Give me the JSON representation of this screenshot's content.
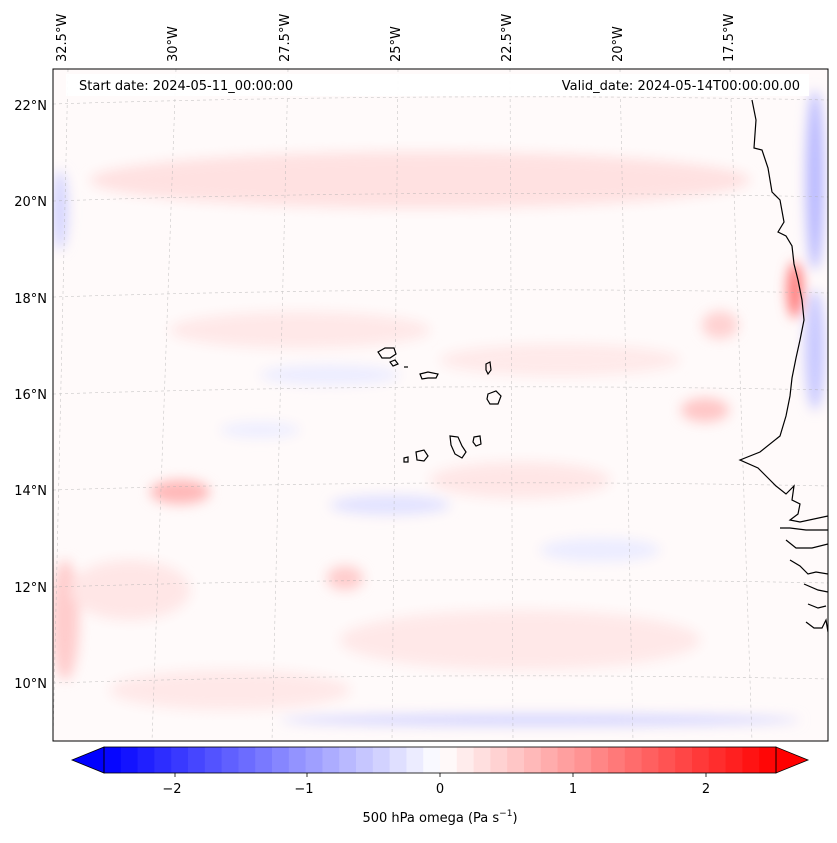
{
  "map": {
    "start_date": "Start date: 2024-05-11_00:00:00",
    "valid_date": "Valid_date: 2024-05-14T00:00:00.00",
    "lon_labels": [
      "32.5°W",
      "30°W",
      "27.5°W",
      "25°W",
      "22.5°W",
      "20°W",
      "17.5°W"
    ],
    "lat_labels": [
      "22°N",
      "20°N",
      "18°N",
      "16°N",
      "14°N",
      "12°N",
      "10°N"
    ],
    "features": {
      "islands": "Cape Verde Islands",
      "coastline": "West African coast"
    }
  },
  "colorbar": {
    "label_main": "500 hPa omega (Pa s",
    "label_exp": "−1",
    "label_close": ")",
    "ticks": [
      "−2",
      "−1",
      "0",
      "1",
      "2"
    ],
    "min": -2.7,
    "max": 2.7,
    "colors": {
      "negative": "#0000ff",
      "zero": "#ffffff",
      "positive": "#ff0000"
    }
  }
}
